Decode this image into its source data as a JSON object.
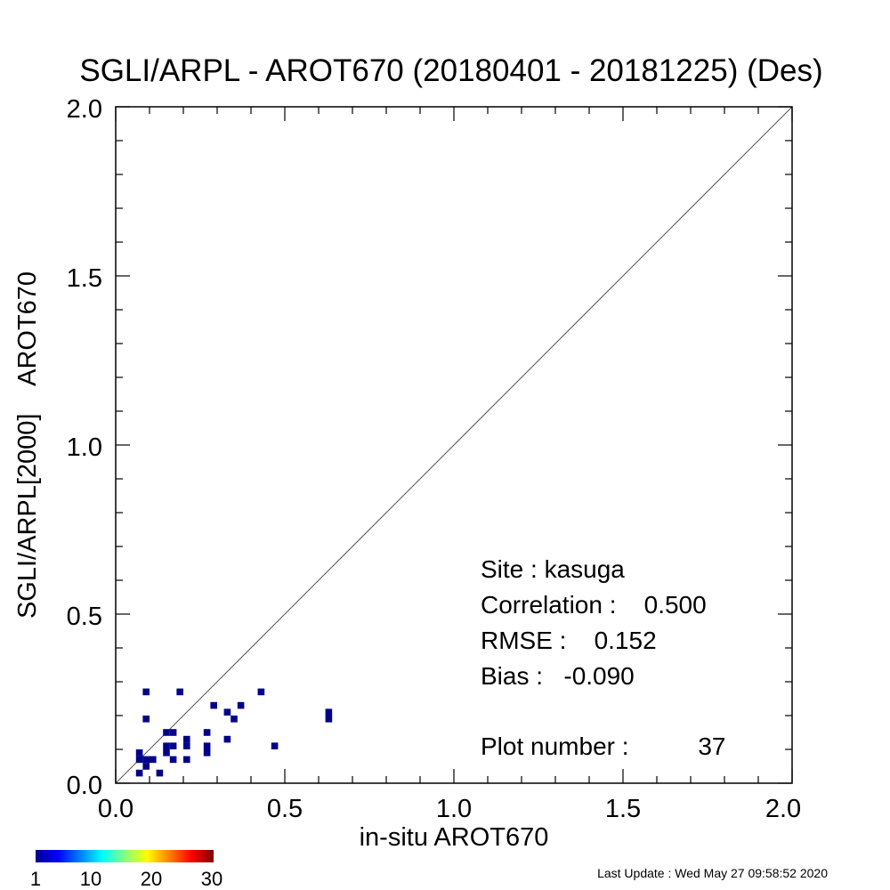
{
  "chart_data": {
    "type": "scatter",
    "title": "SGLI/ARPL - AROT670 (20180401 - 20181225) (Des)",
    "xlabel": "in-situ AROT670",
    "ylabel": "SGLI/ARPL[2000]    AROT670",
    "xlim": [
      0.0,
      2.0
    ],
    "ylim": [
      0.0,
      2.0
    ],
    "x_ticks": [
      "0.0",
      "0.5",
      "1.0",
      "1.5",
      "2.0"
    ],
    "y_ticks": [
      "0.0",
      "0.5",
      "1.0",
      "1.5",
      "2.0"
    ],
    "reference_line": "1:1",
    "bin_size": 0.02,
    "point_color": "#00008b",
    "points": [
      {
        "x": 0.07,
        "y": 0.03
      },
      {
        "x": 0.07,
        "y": 0.07
      },
      {
        "x": 0.07,
        "y": 0.09
      },
      {
        "x": 0.09,
        "y": 0.05
      },
      {
        "x": 0.09,
        "y": 0.07
      },
      {
        "x": 0.09,
        "y": 0.19
      },
      {
        "x": 0.09,
        "y": 0.27
      },
      {
        "x": 0.11,
        "y": 0.07
      },
      {
        "x": 0.13,
        "y": 0.03
      },
      {
        "x": 0.15,
        "y": 0.09
      },
      {
        "x": 0.15,
        "y": 0.11
      },
      {
        "x": 0.15,
        "y": 0.15
      },
      {
        "x": 0.17,
        "y": 0.07
      },
      {
        "x": 0.17,
        "y": 0.11
      },
      {
        "x": 0.17,
        "y": 0.15
      },
      {
        "x": 0.19,
        "y": 0.27
      },
      {
        "x": 0.21,
        "y": 0.07
      },
      {
        "x": 0.21,
        "y": 0.11
      },
      {
        "x": 0.21,
        "y": 0.13
      },
      {
        "x": 0.27,
        "y": 0.09
      },
      {
        "x": 0.27,
        "y": 0.11
      },
      {
        "x": 0.27,
        "y": 0.15
      },
      {
        "x": 0.29,
        "y": 0.23
      },
      {
        "x": 0.33,
        "y": 0.13
      },
      {
        "x": 0.33,
        "y": 0.21
      },
      {
        "x": 0.35,
        "y": 0.19
      },
      {
        "x": 0.37,
        "y": 0.23
      },
      {
        "x": 0.43,
        "y": 0.27
      },
      {
        "x": 0.47,
        "y": 0.11
      },
      {
        "x": 0.63,
        "y": 0.19
      },
      {
        "x": 0.63,
        "y": 0.21
      }
    ],
    "annotations": {
      "site": "Site : kasuga",
      "correlation": "Correlation :    0.500",
      "rmse": "RMSE :    0.152",
      "bias": "Bias :   -0.090",
      "plot_number": "Plot number :          37"
    },
    "colorbar": {
      "colormap": "jet",
      "min": 1,
      "max": 30,
      "tick_labels": [
        "1",
        "10",
        "20",
        "30"
      ]
    }
  },
  "footer": {
    "last_update": "Last Update : Wed May 27 09:58:52 2020"
  }
}
